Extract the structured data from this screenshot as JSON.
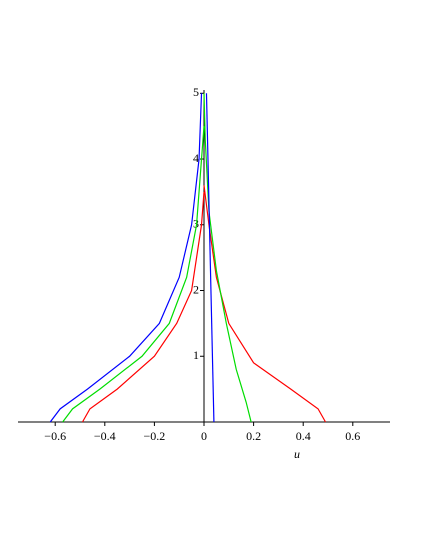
{
  "chart_data": {
    "type": "line",
    "x_label": "u",
    "xlim": [
      -0.75,
      0.75
    ],
    "ylim": [
      0,
      5.05
    ],
    "xticks": [
      {
        "value": -0.6,
        "label": "−0.6"
      },
      {
        "value": -0.4,
        "label": "−0.4"
      },
      {
        "value": -0.2,
        "label": "−0.2"
      },
      0,
      0.2,
      0.4,
      0.6
    ],
    "yticks": [
      1,
      2,
      3,
      4,
      5
    ],
    "series": [
      {
        "color": "#ff0000",
        "x": [
          -0.49,
          -0.46,
          -0.35,
          -0.2,
          -0.11,
          -0.05,
          -0.01,
          0
        ],
        "values": [
          0,
          0.2,
          0.5,
          1,
          1.5,
          2,
          3,
          3.5
        ]
      },
      {
        "color": "#ff0000",
        "x": [
          0.49,
          0.46,
          0.35,
          0.2,
          0.1,
          0.05,
          0.02,
          0
        ],
        "values": [
          0,
          0.2,
          0.5,
          0.9,
          1.5,
          2.2,
          3,
          3.6
        ]
      },
      {
        "color": "#00dd00",
        "x": [
          -0.57,
          -0.53,
          -0.42,
          -0.25,
          -0.14,
          -0.07,
          -0.03,
          -0.01,
          0
        ],
        "values": [
          0,
          0.2,
          0.5,
          1,
          1.5,
          2.2,
          3,
          4,
          4.5
        ]
      },
      {
        "color": "#00dd00",
        "x": [
          0.19,
          0.17,
          0.13,
          0.09,
          0.05,
          0.02,
          0.005,
          0
        ],
        "values": [
          0,
          0.3,
          0.8,
          1.5,
          2.3,
          3.2,
          4.3,
          5
        ]
      },
      {
        "color": "#0000ff",
        "x": [
          -0.62,
          -0.58,
          -0.47,
          -0.3,
          -0.18,
          -0.1,
          -0.05,
          -0.02,
          -0.01
        ],
        "values": [
          0,
          0.2,
          0.5,
          1,
          1.5,
          2.2,
          3,
          4,
          5
        ]
      },
      {
        "color": "#0000ff",
        "x": [
          0.04,
          0.01
        ],
        "values": [
          0,
          5
        ]
      }
    ]
  }
}
